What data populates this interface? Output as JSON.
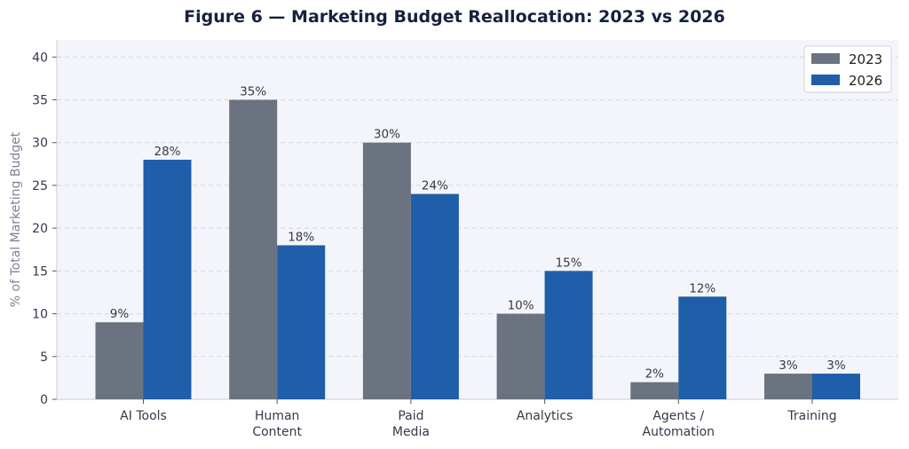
{
  "chart_data": {
    "type": "bar",
    "title": "Figure 6 — Marketing Budget Reallocation: 2023 vs 2026",
    "xlabel": "",
    "ylabel": "% of Total Marketing Budget",
    "ylim": [
      0,
      42
    ],
    "yticks": [
      0,
      5,
      10,
      15,
      20,
      25,
      30,
      35,
      40
    ],
    "grid": "y-dashed",
    "legend_position": "top-right",
    "categories": [
      [
        "AI Tools"
      ],
      [
        "Human",
        "Content"
      ],
      [
        "Paid",
        "Media"
      ],
      [
        "Analytics"
      ],
      [
        "Agents /",
        "Automation"
      ],
      [
        "Training"
      ]
    ],
    "series": [
      {
        "name": "2023",
        "color": "#6b7280",
        "values": [
          9,
          35,
          30,
          10,
          2,
          3
        ],
        "labels": [
          "9%",
          "35%",
          "30%",
          "10%",
          "2%",
          "3%"
        ]
      },
      {
        "name": "2026",
        "color": "#1f5ea8",
        "values": [
          28,
          18,
          24,
          15,
          12,
          3
        ],
        "labels": [
          "28%",
          "18%",
          "24%",
          "15%",
          "12%",
          "3%"
        ]
      }
    ]
  },
  "colors": {
    "plot_bg": "#f4f5fa",
    "grid": "#d5d8e2",
    "axis": "#c9ccda"
  }
}
